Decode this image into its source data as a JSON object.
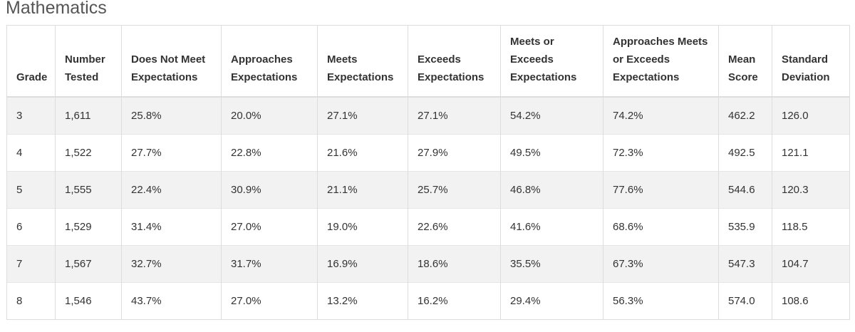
{
  "header": {
    "title": "Mathematics"
  },
  "table": {
    "columns": [
      "Grade",
      "Number Tested",
      "Does Not Meet Expectations",
      "Approaches Expectations",
      "Meets Expectations",
      "Exceeds Expectations",
      "Meets or Exceeds Expectations",
      "Approaches Meets or Exceeds Expectations",
      "Mean Score",
      "Standard Deviation"
    ],
    "rows": [
      [
        "3",
        "1,611",
        "25.8%",
        "20.0%",
        "27.1%",
        "27.1%",
        "54.2%",
        "74.2%",
        "462.2",
        "126.0"
      ],
      [
        "4",
        "1,522",
        "27.7%",
        "22.8%",
        "21.6%",
        "27.9%",
        "49.5%",
        "72.3%",
        "492.5",
        "121.1"
      ],
      [
        "5",
        "1,555",
        "22.4%",
        "30.9%",
        "21.1%",
        "25.7%",
        "46.8%",
        "77.6%",
        "544.6",
        "120.3"
      ],
      [
        "6",
        "1,529",
        "31.4%",
        "27.0%",
        "19.0%",
        "22.6%",
        "41.6%",
        "68.6%",
        "535.9",
        "118.5"
      ],
      [
        "7",
        "1,567",
        "32.7%",
        "31.7%",
        "16.9%",
        "18.6%",
        "35.5%",
        "67.3%",
        "547.3",
        "104.7"
      ],
      [
        "8",
        "1,546",
        "43.7%",
        "27.0%",
        "13.2%",
        "16.2%",
        "29.4%",
        "56.3%",
        "574.0",
        "108.6"
      ]
    ]
  }
}
